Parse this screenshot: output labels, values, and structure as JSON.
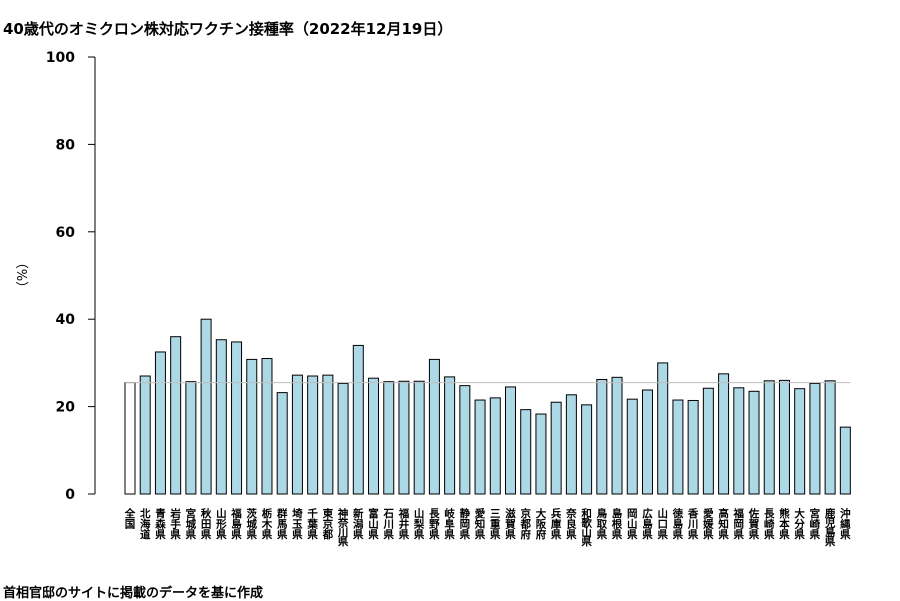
{
  "title": "40歳代のオミクロン株対応ワクチン接種率（2022年12月19日）",
  "caption": "首相官邸のサイトに掲載のデータを基に作成",
  "chart_data": {
    "type": "bar",
    "title": "40歳代のオミクロン株対応ワクチン接種率（2022年12月19日）",
    "ylabel": "（%）",
    "xlabel": "",
    "ylim": [
      0,
      100
    ],
    "yticks": [
      0,
      20,
      40,
      60,
      80,
      100
    ],
    "reference_line": 25.5,
    "colors": {
      "national_bar": "#ffffff",
      "prefecture_bar": "#add8e6",
      "reference_line": "#bebebe"
    },
    "categories": [
      "全国",
      "北海道",
      "青森県",
      "岩手県",
      "宮城県",
      "秋田県",
      "山形県",
      "福島県",
      "茨城県",
      "栃木県",
      "群馬県",
      "埼玉県",
      "千葉県",
      "東京都",
      "神奈川県",
      "新潟県",
      "富山県",
      "石川県",
      "福井県",
      "山梨県",
      "長野県",
      "岐阜県",
      "静岡県",
      "愛知県",
      "三重県",
      "滋賀県",
      "京都府",
      "大阪府",
      "兵庫県",
      "奈良県",
      "和歌山県",
      "鳥取県",
      "島根県",
      "岡山県",
      "広島県",
      "山口県",
      "徳島県",
      "香川県",
      "愛媛県",
      "高知県",
      "福岡県",
      "佐賀県",
      "長崎県",
      "熊本県",
      "大分県",
      "宮崎県",
      "鹿児島県",
      "沖縄県"
    ],
    "values": [
      25.5,
      27,
      32.5,
      36,
      25.7,
      40,
      35.3,
      34.8,
      30.8,
      31,
      23.2,
      27.2,
      27,
      27.2,
      25.3,
      34,
      26.5,
      25.7,
      25.8,
      25.8,
      30.8,
      26.8,
      24.8,
      21.5,
      22,
      24.5,
      19.3,
      18.3,
      21,
      22.7,
      20.4,
      26.2,
      26.7,
      21.7,
      23.8,
      30,
      21.5,
      21.4,
      24.2,
      27.5,
      24.3,
      23.5,
      25.9,
      26,
      24.1,
      25.3,
      25.9,
      15.3
    ]
  }
}
